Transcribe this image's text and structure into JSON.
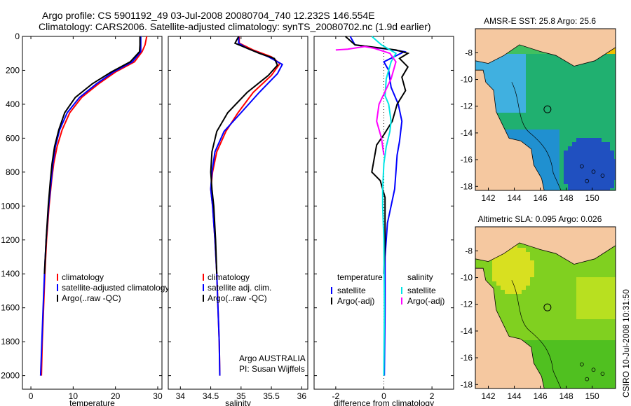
{
  "figure": {
    "title_line1": "Argo profile: CS 5901192_49 03-Jul-2008 20080704_740 12.232S 146.554E",
    "title_line2": "Climatology: CARS2006. Satellite-adjusted climatology: synTS_20080702.nc (1.9d earlier)",
    "side_stamp": "CSIRO 10-Jul-2008 10:31:50",
    "argo_credit_line1": "Argo AUSTRALIA",
    "argo_credit_line2": "PI: Susan Wijffels"
  },
  "colors": {
    "climatology": "#ff0000",
    "satellite": "#0000ff",
    "argo": "#000000",
    "salinity_satellite": "#00e5e5",
    "salinity_argo": "#ff00ff",
    "land": "#f5c8a0"
  },
  "chart_data": [
    {
      "type": "line",
      "name": "temperature-profile",
      "xlabel": "temperature",
      "ylabel": "",
      "xlim": [
        -2,
        31
      ],
      "ylim": [
        2080,
        0
      ],
      "xticks": [
        0,
        10,
        20,
        30
      ],
      "yticks": [
        0,
        200,
        400,
        600,
        800,
        1000,
        1200,
        1400,
        1600,
        1800,
        2000
      ],
      "legend": [
        "climatology",
        "satellite-adjusted climatology",
        "Argo(..raw -QC)"
      ],
      "legend_position": "lower-right",
      "series": [
        {
          "name": "climatology",
          "color": "#ff0000",
          "points": [
            [
              27.4,
              0
            ],
            [
              27.0,
              50
            ],
            [
              26.3,
              90
            ],
            [
              24.5,
              150
            ],
            [
              20,
              210
            ],
            [
              16,
              280
            ],
            [
              12,
              360
            ],
            [
              9.2,
              450
            ],
            [
              7.4,
              550
            ],
            [
              6.2,
              650
            ],
            [
              5.4,
              750
            ],
            [
              4.9,
              850
            ],
            [
              4.3,
              1000
            ],
            [
              3.7,
              1200
            ],
            [
              3.3,
              1400
            ],
            [
              3.0,
              1600
            ],
            [
              2.7,
              1800
            ],
            [
              2.5,
              2000
            ]
          ]
        },
        {
          "name": "satellite-adjusted climatology",
          "color": "#0000ff",
          "points": [
            [
              26.0,
              0
            ],
            [
              26.0,
              50
            ],
            [
              26.0,
              90
            ],
            [
              24.0,
              150
            ],
            [
              19.5,
              210
            ],
            [
              15.5,
              280
            ],
            [
              11.5,
              360
            ],
            [
              8.6,
              450
            ],
            [
              6.8,
              550
            ],
            [
              5.8,
              650
            ],
            [
              5.2,
              750
            ],
            [
              4.8,
              850
            ],
            [
              4.2,
              1000
            ],
            [
              3.6,
              1200
            ],
            [
              3.2,
              1400
            ],
            [
              2.9,
              1600
            ],
            [
              2.6,
              1800
            ],
            [
              2.3,
              2000
            ]
          ]
        },
        {
          "name": "Argo(..raw -QC)",
          "color": "#000000",
          "points": [
            [
              25.8,
              0
            ],
            [
              25.8,
              50
            ],
            [
              25.7,
              90
            ],
            [
              23.5,
              150
            ],
            [
              19,
              210
            ],
            [
              14.5,
              280
            ],
            [
              10.5,
              360
            ],
            [
              8.0,
              450
            ],
            [
              6.6,
              550
            ],
            [
              5.6,
              650
            ],
            [
              5.0,
              750
            ],
            [
              4.6,
              850
            ],
            [
              4.1,
              1000
            ],
            [
              3.6,
              1200
            ],
            [
              3.2,
              1400
            ]
          ]
        }
      ]
    },
    {
      "type": "line",
      "name": "salinity-profile",
      "xlabel": "salinity",
      "xlim": [
        33.8,
        36.1
      ],
      "ylim": [
        2080,
        0
      ],
      "xticks": [
        34,
        34.5,
        35,
        35.5,
        36
      ],
      "legend": [
        "climatology",
        "satellite adj. clim.",
        "Argo(..raw -QC)"
      ],
      "legend_position": "lower-right",
      "series": [
        {
          "name": "climatology",
          "color": "#ff0000",
          "points": [
            [
              34.97,
              0
            ],
            [
              34.97,
              40
            ],
            [
              35.2,
              80
            ],
            [
              35.5,
              120
            ],
            [
              35.64,
              160
            ],
            [
              35.5,
              230
            ],
            [
              35.2,
              330
            ],
            [
              34.95,
              450
            ],
            [
              34.75,
              560
            ],
            [
              34.6,
              680
            ],
            [
              34.53,
              800
            ],
            [
              34.5,
              900
            ],
            [
              34.53,
              1000
            ],
            [
              34.57,
              1200
            ],
            [
              34.6,
              1400
            ],
            [
              34.62,
              1600
            ],
            [
              34.64,
              1800
            ],
            [
              34.65,
              2000
            ]
          ]
        },
        {
          "name": "satellite adj. clim.",
          "color": "#0000ff",
          "points": [
            [
              34.96,
              0
            ],
            [
              34.96,
              40
            ],
            [
              35.1,
              70
            ],
            [
              35.45,
              120
            ],
            [
              35.68,
              165
            ],
            [
              35.6,
              220
            ],
            [
              35.3,
              330
            ],
            [
              35.0,
              450
            ],
            [
              34.72,
              560
            ],
            [
              34.57,
              680
            ],
            [
              34.52,
              800
            ],
            [
              34.5,
              900
            ],
            [
              34.53,
              1000
            ],
            [
              34.57,
              1200
            ],
            [
              34.6,
              1400
            ],
            [
              34.62,
              1600
            ],
            [
              34.64,
              1800
            ],
            [
              34.65,
              2000
            ]
          ]
        },
        {
          "name": "Argo(..raw -QC)",
          "color": "#000000",
          "points": [
            [
              34.96,
              0
            ],
            [
              34.9,
              40
            ],
            [
              35.1,
              70
            ],
            [
              35.3,
              100
            ],
            [
              35.55,
              130
            ],
            [
              35.6,
              170
            ],
            [
              35.45,
              230
            ],
            [
              35.1,
              330
            ],
            [
              34.78,
              450
            ],
            [
              34.6,
              560
            ],
            [
              34.52,
              680
            ],
            [
              34.5,
              800
            ],
            [
              34.52,
              900
            ],
            [
              34.55,
              1000
            ],
            [
              34.58,
              1200
            ],
            [
              34.6,
              1400
            ]
          ]
        }
      ]
    },
    {
      "type": "line",
      "name": "difference-profile",
      "xlabel": "difference from climatology",
      "xlim": [
        -2.9,
        2.9
      ],
      "ylim": [
        2080,
        0
      ],
      "xticks": [
        -2,
        0,
        2
      ],
      "legend_groups": [
        {
          "title": "temperature",
          "items": [
            "satellite",
            "Argo(-adj)"
          ]
        },
        {
          "title": "salinity",
          "items": [
            "satellite",
            "Argo(-adj)"
          ]
        }
      ],
      "legend_position": "lower-right",
      "zero_line": "dotted",
      "series": [
        {
          "name": "temperature satellite",
          "color": "#0000ff",
          "points": [
            [
              -1.4,
              0
            ],
            [
              -1.2,
              50
            ],
            [
              0.4,
              80
            ],
            [
              0.85,
              90
            ],
            [
              0.0,
              150
            ],
            [
              0.2,
              200
            ],
            [
              0.3,
              300
            ],
            [
              0.6,
              400
            ],
            [
              0.75,
              500
            ],
            [
              0.65,
              620
            ],
            [
              0.55,
              700
            ],
            [
              0.5,
              800
            ],
            [
              0.45,
              900
            ],
            [
              0.3,
              1000
            ],
            [
              0.15,
              1100
            ],
            [
              0.1,
              1200
            ],
            [
              0.05,
              1300
            ],
            [
              0.05,
              1600
            ],
            [
              0.02,
              2000
            ]
          ]
        },
        {
          "name": "temperature Argo(-adj)",
          "color": "#000000",
          "points": [
            [
              -1.6,
              0
            ],
            [
              -1.2,
              50
            ],
            [
              0.5,
              80
            ],
            [
              1.0,
              100
            ],
            [
              0.65,
              130
            ],
            [
              1.0,
              180
            ],
            [
              0.75,
              240
            ],
            [
              0.9,
              320
            ],
            [
              0.55,
              400
            ],
            [
              0.35,
              500
            ],
            [
              0.0,
              580
            ],
            [
              -0.3,
              640
            ],
            [
              -0.5,
              800
            ],
            [
              -0.15,
              850
            ],
            [
              0.05,
              950
            ],
            [
              0.05,
              1200
            ],
            [
              0.0,
              1400
            ]
          ]
        },
        {
          "name": "salinity satellite",
          "color": "#00e5e5",
          "points": [
            [
              -0.5,
              0
            ],
            [
              -0.1,
              50
            ],
            [
              0.5,
              100
            ],
            [
              0.3,
              150
            ],
            [
              0.1,
              250
            ],
            [
              0.05,
              350
            ],
            [
              0.2,
              400
            ],
            [
              0.3,
              500
            ],
            [
              0.25,
              560
            ],
            [
              0.1,
              650
            ],
            [
              0.0,
              750
            ],
            [
              -0.05,
              900
            ],
            [
              -0.05,
              1000
            ],
            [
              0.0,
              1200
            ],
            [
              0.02,
              1600
            ],
            [
              0.0,
              2000
            ]
          ]
        },
        {
          "name": "salinity Argo(-adj)",
          "color": "#ff00ff",
          "points": [
            [
              -2.0,
              80
            ],
            [
              -1.5,
              75
            ],
            [
              -0.8,
              60
            ],
            [
              -0.4,
              70
            ],
            [
              0.25,
              100
            ],
            [
              0.5,
              150
            ],
            [
              0.3,
              250
            ],
            [
              -0.2,
              400
            ],
            [
              -0.3,
              500
            ],
            [
              -0.1,
              600
            ],
            [
              0.0,
              700
            ]
          ]
        }
      ]
    },
    {
      "type": "heatmap",
      "name": "sst-map",
      "title": "AMSR-E SST: 25.8 Argo: 25.6",
      "xticks": [
        142,
        144,
        146,
        148,
        150
      ],
      "yticks": [
        -8,
        -10,
        -12,
        -14,
        -16,
        -18
      ],
      "xlim": [
        141,
        151.8
      ],
      "ylim": [
        -18.3,
        -6.2
      ],
      "argo_marker": {
        "lon": 146.554,
        "lat": -12.232
      }
    },
    {
      "type": "heatmap",
      "name": "sla-map",
      "title": "Altimetric SLA: 0.095 Argo: 0.026",
      "xticks": [
        142,
        144,
        146,
        148,
        150
      ],
      "yticks": [
        -8,
        -10,
        -12,
        -14,
        -16,
        -18
      ],
      "xlim": [
        141,
        151.8
      ],
      "ylim": [
        -18.3,
        -6.2
      ],
      "argo_marker": {
        "lon": 146.554,
        "lat": -12.232
      }
    }
  ]
}
